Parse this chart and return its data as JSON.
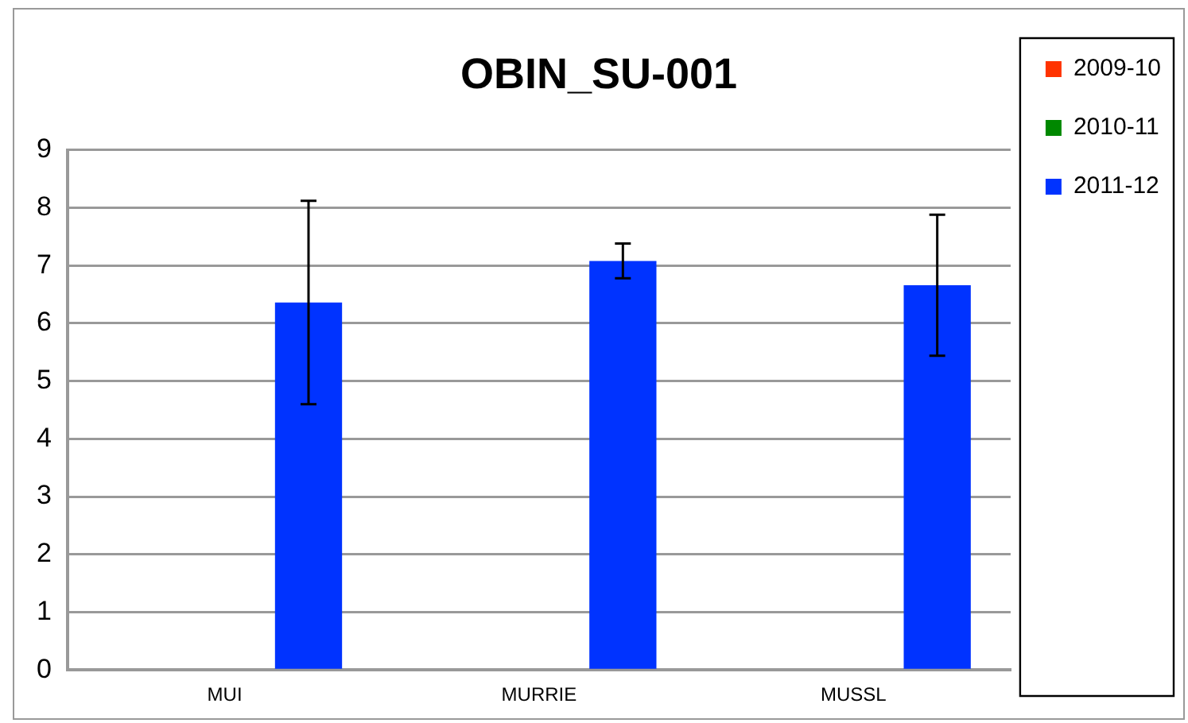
{
  "chart_data": {
    "type": "bar",
    "title": "OBIN_SU-001",
    "categories": [
      "MUI",
      "MURRIE",
      "MUSSL"
    ],
    "series": [
      {
        "name": "2009-10",
        "color": "#ff3300",
        "values": [
          null,
          null,
          null
        ]
      },
      {
        "name": "2010-11",
        "color": "#008800",
        "values": [
          null,
          null,
          null
        ]
      },
      {
        "name": "2011-12",
        "color": "#0033ff",
        "values": [
          6.36,
          7.08,
          6.66
        ],
        "errors": [
          1.76,
          0.3,
          1.22
        ]
      }
    ],
    "ylim": [
      0,
      9
    ],
    "yticks": [
      0,
      1,
      2,
      3,
      4,
      5,
      6,
      7,
      8,
      9
    ],
    "grid": "y",
    "legend": "right"
  }
}
